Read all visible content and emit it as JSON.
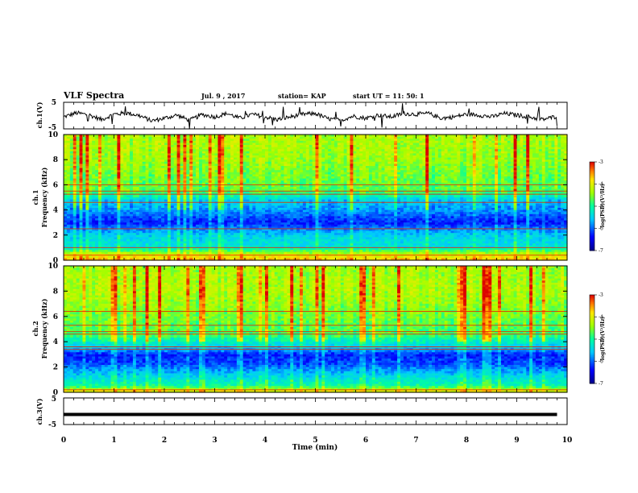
{
  "chart_data": {
    "type": "heatmap",
    "header": {
      "title": "VLF Spectra",
      "date": "Jul. 9 , 2017",
      "station": "station= KAP",
      "start": "start UT = 11: 50: 1"
    },
    "xlabel": "Time (min)",
    "x_ticks": [
      "0",
      "1",
      "2",
      "3",
      "4",
      "5",
      "6",
      "7",
      "8",
      "9",
      "10"
    ],
    "xlim": [
      0,
      10
    ],
    "panels": [
      {
        "id": "ch1_waveform",
        "type": "line",
        "ylabel": "ch.1(V)",
        "ylim": [
          -5,
          5
        ],
        "y_ticks": [
          "5",
          "-5"
        ],
        "trace_color": "#000000",
        "series": [
          {
            "x": [
              0.0,
              0.25,
              0.5,
              0.75,
              1.0,
              1.25,
              1.5,
              1.75,
              2.0,
              2.25,
              2.5,
              2.75,
              3.0,
              3.25,
              3.5,
              3.75,
              4.0,
              4.25,
              4.5,
              4.75,
              5.0,
              5.25,
              5.5,
              5.75,
              6.0,
              6.25,
              6.5,
              6.75,
              7.0,
              7.25,
              7.5,
              7.75,
              8.0,
              8.25,
              8.5,
              8.75,
              9.0,
              9.25,
              9.5,
              9.75,
              9.8
            ],
            "y": [
              -0.5,
              1.0,
              0.3,
              -1.5,
              0.5,
              1.0,
              0.0,
              -2.0,
              -1.0,
              0.2,
              -1.8,
              0.4,
              -0.5,
              0.8,
              -1.0,
              0.5,
              -0.5,
              -1.5,
              -0.5,
              0.5,
              0.8,
              -1.2,
              -1.8,
              -0.2,
              -1.0,
              0.2,
              -0.5,
              0.8,
              0.5,
              0.8,
              -1.0,
              -0.5,
              0.5,
              0.2,
              -0.5,
              0.8,
              0.2,
              -0.5,
              -1.5,
              -0.5,
              0.0
            ]
          }
        ]
      },
      {
        "id": "ch1_spectrogram",
        "type": "heatmap",
        "ylabel": "ch.1",
        "ylabel2": "Frequency (kHz)",
        "ylim": [
          0,
          10
        ],
        "y_ticks": [
          "0",
          "2",
          "4",
          "6",
          "8",
          "10"
        ],
        "colorbar": {
          "label": "log(PSD)(V²/Hz)",
          "range": [
            -7,
            -3
          ],
          "ticks": [
            "-3",
            "-4",
            "-5",
            "-6",
            "-7"
          ]
        },
        "freq_profile_log_psd": [
          {
            "f": 0.0,
            "v": -3.6
          },
          {
            "f": 0.5,
            "v": -4.2
          },
          {
            "f": 1.0,
            "v": -5.3
          },
          {
            "f": 2.0,
            "v": -5.5
          },
          {
            "f": 2.5,
            "v": -5.9
          },
          {
            "f": 3.0,
            "v": -6.3
          },
          {
            "f": 4.0,
            "v": -5.8
          },
          {
            "f": 4.8,
            "v": -5.5
          },
          {
            "f": 5.5,
            "v": -4.7
          },
          {
            "f": 6.5,
            "v": -4.6
          },
          {
            "f": 8.0,
            "v": -4.4
          },
          {
            "f": 10.0,
            "v": -4.3
          }
        ],
        "lines_khz": [
          0.4,
          1.0,
          2.5,
          4.6,
          5.25,
          5.5,
          6.0
        ]
      },
      {
        "id": "ch2_spectrogram",
        "type": "heatmap",
        "ylabel": "ch.2",
        "ylabel2": "Frequency (kHz)",
        "ylim": [
          0,
          10
        ],
        "y_ticks": [
          "0",
          "2",
          "4",
          "6",
          "8",
          "10"
        ],
        "colorbar": {
          "label": "log(PSD)(V²/Hz)",
          "range": [
            -7,
            -3
          ],
          "ticks": [
            "-3",
            "-4",
            "-5",
            "-6",
            "-7"
          ]
        },
        "freq_profile_log_psd": [
          {
            "f": 0.0,
            "v": -3.8
          },
          {
            "f": 0.5,
            "v": -5.0
          },
          {
            "f": 1.5,
            "v": -5.6
          },
          {
            "f": 2.2,
            "v": -6.1
          },
          {
            "f": 3.0,
            "v": -6.3
          },
          {
            "f": 3.5,
            "v": -5.6
          },
          {
            "f": 4.5,
            "v": -4.8
          },
          {
            "f": 6.0,
            "v": -4.6
          },
          {
            "f": 8.0,
            "v": -4.3
          },
          {
            "f": 10.0,
            "v": -4.4
          }
        ],
        "lines_khz": [
          0.2,
          3.4,
          3.6,
          4.6,
          4.8,
          5.3,
          6.4
        ]
      },
      {
        "id": "ch3_waveform",
        "type": "line",
        "ylabel": "ch.3(V)",
        "ylim": [
          -5,
          5
        ],
        "y_ticks": [
          "5",
          "-5"
        ],
        "trace_color": "#000000",
        "series": [
          {
            "x": [
              0,
              9.8
            ],
            "y": [
              -1.2,
              -1.2
            ]
          }
        ]
      }
    ],
    "grid": false
  }
}
